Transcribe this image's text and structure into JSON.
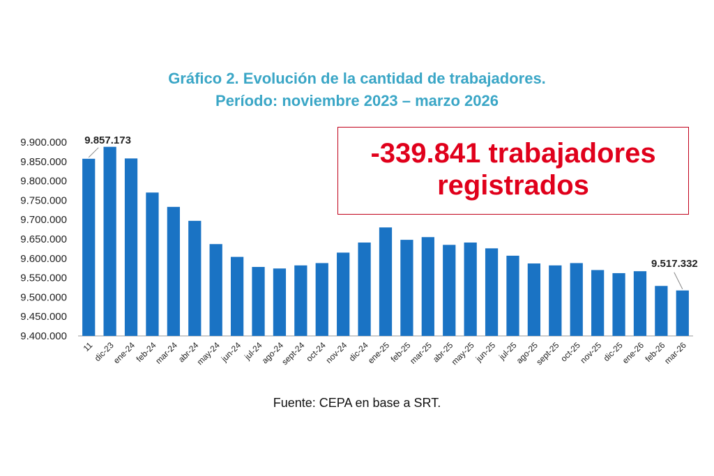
{
  "chart_data": {
    "type": "bar",
    "title": "Gráfico 2. Evolución de la cantidad de trabajadores.",
    "subtitle": "Período: noviembre 2023 – marzo 2026",
    "categories": [
      "11",
      "dic-23",
      "ene-24",
      "feb-24",
      "mar-24",
      "abr-24",
      "may-24",
      "jun-24",
      "jul-24",
      "ago-24",
      "sept-24",
      "oct-24",
      "nov-24",
      "dic-24",
      "ene-25",
      "feb-25",
      "mar-25",
      "abr-25",
      "may-25",
      "jun-25",
      "jul-25",
      "ago-25",
      "sept-25",
      "oct-25",
      "nov-25",
      "dic-25",
      "ene-26",
      "feb-26",
      "mar-26"
    ],
    "values": [
      9857173,
      9888000,
      9858000,
      9770000,
      9733000,
      9697000,
      9637000,
      9604000,
      9578000,
      9574000,
      9582000,
      9588000,
      9615000,
      9641000,
      9680000,
      9648000,
      9655000,
      9635000,
      9641000,
      9626000,
      9607000,
      9587000,
      9582000,
      9588000,
      9570000,
      9562000,
      9567000,
      9529000,
      9517332
    ],
    "ylim": [
      9400000,
      9900000
    ],
    "yticks": [
      "9.400.000",
      "9.450.000",
      "9.500.000",
      "9.550.000",
      "9.600.000",
      "9.650.000",
      "9.700.000",
      "9.750.000",
      "9.800.000",
      "9.850.000",
      "9.900.000"
    ],
    "ytick_values": [
      9400000,
      9450000,
      9500000,
      9550000,
      9600000,
      9650000,
      9700000,
      9750000,
      9800000,
      9850000,
      9900000
    ],
    "annotations": [
      {
        "text": "9.857.173",
        "category_index": 0
      },
      {
        "text": "9.517.332",
        "category_index": 28
      }
    ],
    "grid": false,
    "bar_color": "#1a73c4"
  },
  "callout": {
    "line1": "-339.841 trabajadores",
    "line2": "registrados",
    "color": "#e0001b"
  },
  "source": "Fuente: CEPA en base a SRT."
}
